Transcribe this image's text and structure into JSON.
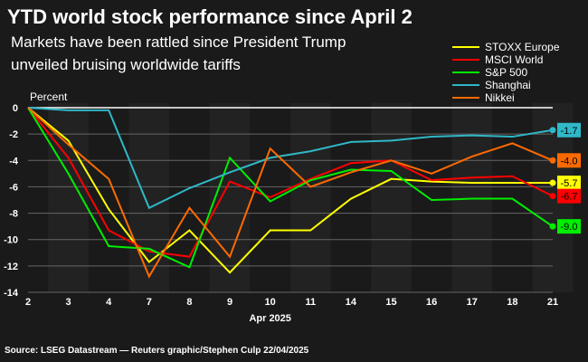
{
  "header": {
    "title": "YTD world stock performance since April 2",
    "subtitle_line1": "Markets have been rattled since President Trump",
    "subtitle_line2": "unveiled bruising worldwide tariffs"
  },
  "source": "Source: LSEG Datastream — Reuters graphic/Stephen Culp 22/04/2025",
  "chart_data": {
    "type": "line",
    "title": "YTD world stock performance since April 2",
    "ylabel": "Percent",
    "xlabel": "Apr 2025",
    "x": [
      "2",
      "3",
      "4",
      "7",
      "8",
      "9",
      "10",
      "11",
      "14",
      "15",
      "16",
      "17",
      "18",
      "21"
    ],
    "ylim": [
      -14,
      0
    ],
    "yticks": [
      "0",
      "-2",
      "-4",
      "-6",
      "-8",
      "-10",
      "-12",
      "-14"
    ],
    "series": [
      {
        "name": "STOXX Europe",
        "color": "#ffff00",
        "end_label": "-5.7",
        "values": [
          0,
          -2.5,
          -7.7,
          -11.7,
          -9.3,
          -12.5,
          -9.3,
          -9.3,
          -6.9,
          -5.4,
          -5.6,
          -5.7,
          -5.7,
          -5.7
        ]
      },
      {
        "name": "MSCI World",
        "color": "#ff0000",
        "end_label": "-6.7",
        "values": [
          0,
          -3.8,
          -9.3,
          -10.9,
          -11.3,
          -5.6,
          -6.8,
          -5.4,
          -4.2,
          -4.0,
          -5.5,
          -5.3,
          -5.2,
          -6.7
        ]
      },
      {
        "name": "S&P 500",
        "color": "#00ee00",
        "end_label": "-9.0",
        "values": [
          0,
          -5.0,
          -10.5,
          -10.7,
          -12.1,
          -3.8,
          -7.1,
          -5.5,
          -4.7,
          -4.8,
          -7.0,
          -6.9,
          -6.9,
          -9.0
        ]
      },
      {
        "name": "Shanghai",
        "color": "#2fb8c8",
        "end_label": "-1.7",
        "values": [
          0,
          -0.2,
          -0.2,
          -7.6,
          -6.1,
          -4.9,
          -3.8,
          -3.3,
          -2.6,
          -2.5,
          -2.2,
          -2.1,
          -2.2,
          -1.7
        ]
      },
      {
        "name": "Nikkei",
        "color": "#ff6a00",
        "end_label": "-4.0",
        "values": [
          0,
          -2.8,
          -5.4,
          -12.8,
          -7.6,
          -11.3,
          -3.1,
          -6.0,
          -4.9,
          -4.0,
          -5.0,
          -3.7,
          -2.7,
          -4.0
        ]
      }
    ],
    "legend": "top-right",
    "grid": true
  }
}
